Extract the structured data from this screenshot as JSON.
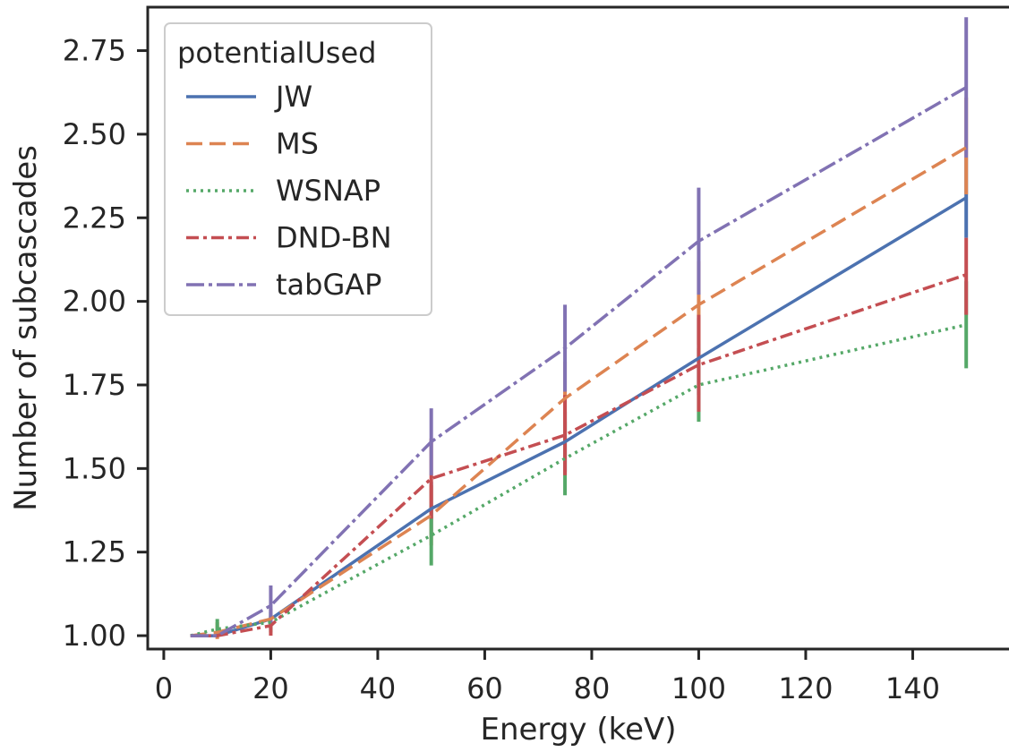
{
  "chart_data": {
    "type": "line",
    "xlabel": "Energy (keV)",
    "ylabel": "Number of subcascades",
    "xlim": [
      -3,
      158
    ],
    "ylim": [
      0.96,
      2.88
    ],
    "xticks": [
      0,
      20,
      40,
      60,
      80,
      100,
      120,
      140
    ],
    "yticks": [
      1.0,
      1.25,
      1.5,
      1.75,
      2.0,
      2.25,
      2.5,
      2.75
    ],
    "ytick_labels": [
      "1.00",
      "1.25",
      "1.50",
      "1.75",
      "2.00",
      "2.25",
      "2.50",
      "2.75"
    ],
    "legend_title": "potentialUsed",
    "legend_position": "top-left",
    "grid": false,
    "series": [
      {
        "name": "JW",
        "color": "#4c72b0",
        "dash": "solid",
        "x": [
          5,
          10,
          20,
          50,
          75,
          100,
          150
        ],
        "y": [
          1.0,
          1.0,
          1.05,
          1.38,
          1.58,
          1.83,
          2.31
        ],
        "err": [
          [
            1.0,
            1.0
          ],
          [
            1.0,
            1.01
          ],
          [
            1.02,
            1.08
          ],
          [
            1.3,
            1.46
          ],
          [
            1.49,
            1.67
          ],
          [
            1.72,
            1.95
          ],
          [
            2.19,
            2.43
          ]
        ]
      },
      {
        "name": "MS",
        "color": "#dd8452",
        "dash": "dashed",
        "x": [
          5,
          10,
          20,
          50,
          75,
          100,
          150
        ],
        "y": [
          1.0,
          1.01,
          1.05,
          1.36,
          1.71,
          1.99,
          2.46
        ],
        "err": [
          [
            1.0,
            1.0
          ],
          [
            0.99,
            1.04
          ],
          [
            1.02,
            1.08
          ],
          [
            1.27,
            1.45
          ],
          [
            1.61,
            1.82
          ],
          [
            1.87,
            2.12
          ],
          [
            2.32,
            2.61
          ]
        ]
      },
      {
        "name": "WSNAP",
        "color": "#55a868",
        "dash": "dotted",
        "x": [
          5,
          10,
          20,
          50,
          75,
          100,
          150
        ],
        "y": [
          1.0,
          1.02,
          1.04,
          1.3,
          1.53,
          1.75,
          1.93
        ],
        "err": [
          [
            1.0,
            1.0
          ],
          [
            1.0,
            1.05
          ],
          [
            1.01,
            1.07
          ],
          [
            1.21,
            1.39
          ],
          [
            1.42,
            1.64
          ],
          [
            1.64,
            1.86
          ],
          [
            1.8,
            2.06
          ]
        ]
      },
      {
        "name": "DND-BN",
        "color": "#c44e52",
        "dash": "dashdot",
        "x": [
          5,
          10,
          20,
          50,
          75,
          100,
          150
        ],
        "y": [
          1.0,
          1.0,
          1.03,
          1.47,
          1.6,
          1.81,
          2.08
        ],
        "err": [
          [
            1.0,
            1.0
          ],
          [
            1.0,
            1.01
          ],
          [
            1.0,
            1.06
          ],
          [
            1.35,
            1.59
          ],
          [
            1.48,
            1.72
          ],
          [
            1.67,
            1.96
          ],
          [
            1.96,
            2.19
          ]
        ]
      },
      {
        "name": "tabGAP",
        "color": "#8172b3",
        "dash": "dashdot2",
        "x": [
          5,
          10,
          20,
          50,
          75,
          100,
          150
        ],
        "y": [
          1.0,
          1.0,
          1.09,
          1.58,
          1.86,
          2.18,
          2.64
        ],
        "err": [
          [
            1.0,
            1.0
          ],
          [
            1.0,
            1.01
          ],
          [
            1.03,
            1.15
          ],
          [
            1.48,
            1.68
          ],
          [
            1.73,
            1.99
          ],
          [
            2.02,
            2.34
          ],
          [
            2.43,
            2.85
          ]
        ]
      }
    ]
  }
}
